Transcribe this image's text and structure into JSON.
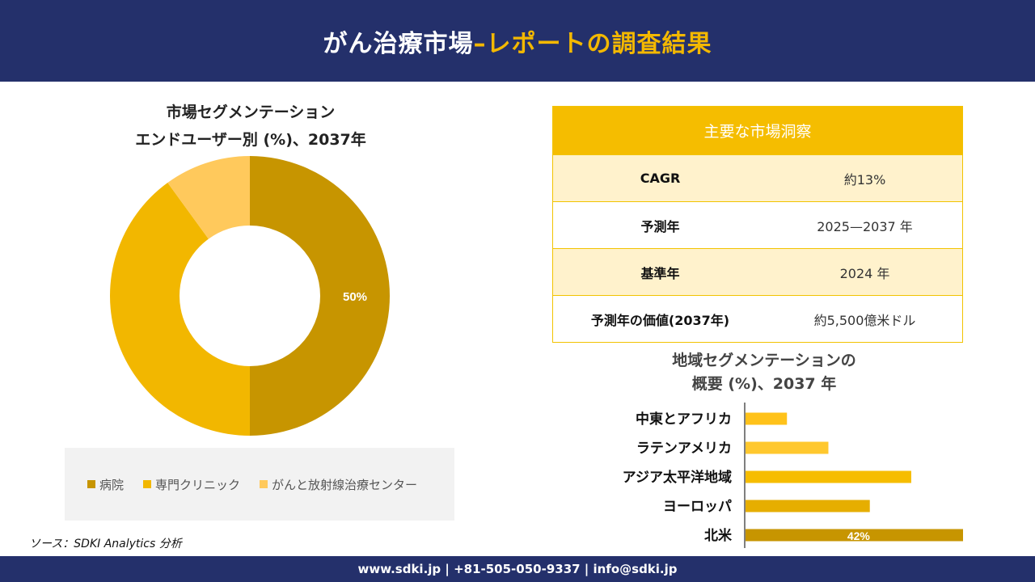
{
  "header": {
    "title_main": "がん治療市場",
    "title_accent": "–レポートの調査結果"
  },
  "donut": {
    "title_line1": "市場セグメンテーション",
    "title_line2": "エンドユーザー別 (%)、2037年"
  },
  "table": {
    "heading": "主要な市場洞察",
    "rows": [
      {
        "label": "CAGR",
        "value": "約13%"
      },
      {
        "label": "予測年",
        "value": "2025—2037 年"
      },
      {
        "label": "基準年",
        "value": "2024 年"
      },
      {
        "label": "予測年の価値(2037年)",
        "value": "約5,500億米ドル"
      }
    ]
  },
  "bars": {
    "title_line1": "地域セグメンテーションの",
    "title_line2": "概要 (%)、2037 年"
  },
  "source": "ソース：SDKI Analytics 分析",
  "footer": {
    "contact": "www.sdki.jp | +81-505-050-9337 | info@sdki.jp"
  },
  "chart_data": [
    {
      "type": "pie",
      "title": "市場セグメンテーション エンドユーザー別 (%)、2037年",
      "categories": [
        "病院",
        "専門クリニック",
        "がんと放射線治療センター"
      ],
      "values": [
        50,
        40,
        10
      ],
      "data_labels": [
        "50%",
        "",
        ""
      ],
      "colors": [
        "#c79500",
        "#f2b700",
        "#ffc95c"
      ],
      "legend": "bottom"
    },
    {
      "type": "bar",
      "orientation": "horizontal",
      "title": "地域セグメンテーションの概要 (%)、2037 年",
      "categories": [
        "中東とアフリカ",
        "ラテンアメリカ",
        "アジア太平洋地域",
        "ヨーロッパ",
        "北米"
      ],
      "values": [
        8,
        16,
        32,
        24,
        42
      ],
      "data_labels": [
        "",
        "",
        "",
        "",
        "42%"
      ],
      "colors": [
        "#ffc21a",
        "#ffc82e",
        "#f6bd00",
        "#e6ae00",
        "#c79500"
      ]
    }
  ]
}
